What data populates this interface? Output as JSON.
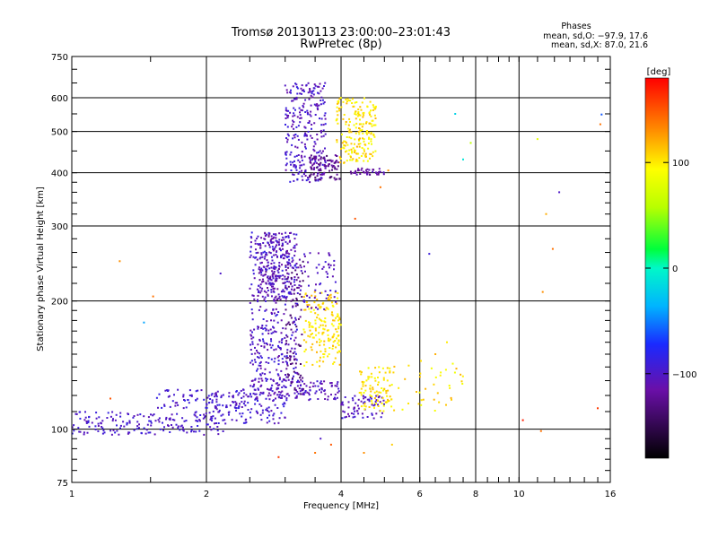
{
  "chart_data": {
    "type": "scatter",
    "title": "Tromsø 20130113 23:00:00–23:01:43",
    "subtitle": "RwPretec (8p)",
    "xlabel": "Frequency [MHz]",
    "ylabel": "Stationary phase Virtual Height [km]",
    "x_scale": "log",
    "y_scale": "log",
    "xlim": [
      1,
      16
    ],
    "ylim": [
      75,
      750
    ],
    "x_ticks": [
      1,
      2,
      4,
      6,
      8,
      10,
      16
    ],
    "x_tick_labels": [
      "1",
      "2",
      "4",
      "6",
      "8",
      "10",
      "16"
    ],
    "y_ticks": [
      75,
      100,
      200,
      300,
      400,
      500,
      600,
      750
    ],
    "y_tick_labels": [
      "75",
      "100",
      "200",
      "300",
      "400",
      "500",
      "600",
      "750"
    ],
    "grid": true,
    "stats": {
      "heading": "Phases",
      "line_o": "mean, sd,O: −97.9, 17.6",
      "line_x": "mean, sd,X: 87.0, 21.6"
    },
    "colorbar": {
      "label": "[deg]",
      "range": [
        -180,
        180
      ],
      "ticks": [
        100,
        0,
        -100
      ],
      "tick_labels": [
        "100",
        "0",
        "−100"
      ]
    },
    "clusters": [
      {
        "name": "low-E trace",
        "x_range": [
          1.0,
          2.2
        ],
        "y_range": [
          97,
          110
        ],
        "phase_range": [
          -110,
          -85
        ],
        "count": 180
      },
      {
        "name": "E rising",
        "x_range": [
          2.0,
          3.0
        ],
        "y_range": [
          103,
          122
        ],
        "phase_range": [
          -110,
          -85
        ],
        "count": 120
      },
      {
        "name": "E upper",
        "x_range": [
          1.55,
          2.5
        ],
        "y_range": [
          112,
          124
        ],
        "phase_range": [
          -110,
          -85
        ],
        "count": 80
      },
      {
        "name": "E spread",
        "x_range": [
          2.5,
          4.0
        ],
        "y_range": [
          117,
          130
        ],
        "phase_range": [
          -115,
          -90
        ],
        "count": 140
      },
      {
        "name": "F1 column",
        "x_range": [
          2.5,
          3.2
        ],
        "y_range": [
          130,
          290
        ],
        "phase_range": [
          -115,
          -85
        ],
        "count": 380
      },
      {
        "name": "F1 dense core",
        "x_range": [
          2.6,
          3.1
        ],
        "y_range": [
          200,
          290
        ],
        "phase_range": [
          -125,
          -90
        ],
        "count": 160
      },
      {
        "name": "F1 violet column",
        "x_range": [
          3.0,
          3.3
        ],
        "y_range": [
          120,
          250
        ],
        "phase_range": [
          -140,
          -120
        ],
        "count": 90
      },
      {
        "name": "F1 X-mode",
        "x_range": [
          3.3,
          4.0
        ],
        "y_range": [
          140,
          210
        ],
        "phase_range": [
          90,
          120
        ],
        "count": 170
      },
      {
        "name": "F1 mixed",
        "x_range": [
          3.2,
          3.9
        ],
        "y_range": [
          190,
          260
        ],
        "phase_range": [
          -115,
          -90
        ],
        "count": 60
      },
      {
        "name": "E high-freq O",
        "x_range": [
          4.0,
          5.0
        ],
        "y_range": [
          106,
          120
        ],
        "phase_range": [
          -115,
          -90
        ],
        "count": 70
      },
      {
        "name": "E high-freq X",
        "x_range": [
          4.4,
          5.2
        ],
        "y_range": [
          110,
          140
        ],
        "phase_range": [
          85,
          115
        ],
        "count": 90
      },
      {
        "name": "E tail",
        "x_range": [
          5.2,
          7.5
        ],
        "y_range": [
          110,
          145
        ],
        "phase_range": [
          85,
          120
        ],
        "count": 40
      },
      {
        "name": "F2 O-mode",
        "x_range": [
          3.0,
          3.7
        ],
        "y_range": [
          380,
          650
        ],
        "phase_range": [
          -115,
          -85
        ],
        "count": 260
      },
      {
        "name": "F2 base",
        "x_range": [
          3.4,
          4.0
        ],
        "y_range": [
          385,
          440
        ],
        "phase_range": [
          -140,
          -110
        ],
        "count": 90
      },
      {
        "name": "F2 X-mode",
        "x_range": [
          3.9,
          4.8
        ],
        "y_range": [
          420,
          600
        ],
        "phase_range": [
          85,
          120
        ],
        "count": 200
      },
      {
        "name": "F2 lower edge",
        "x_range": [
          4.2,
          5.0
        ],
        "y_range": [
          395,
          410
        ],
        "phase_range": [
          -130,
          -100
        ],
        "count": 40
      }
    ],
    "outliers": [
      {
        "x": 1.28,
        "y": 248,
        "phase": 130
      },
      {
        "x": 1.22,
        "y": 118,
        "phase": 150
      },
      {
        "x": 1.52,
        "y": 205,
        "phase": 140
      },
      {
        "x": 1.45,
        "y": 178,
        "phase": -40
      },
      {
        "x": 2.15,
        "y": 232,
        "phase": -100
      },
      {
        "x": 4.3,
        "y": 312,
        "phase": 150
      },
      {
        "x": 4.9,
        "y": 370,
        "phase": 140
      },
      {
        "x": 5.1,
        "y": 405,
        "phase": 130
      },
      {
        "x": 6.3,
        "y": 258,
        "phase": -90
      },
      {
        "x": 7.5,
        "y": 430,
        "phase": -10
      },
      {
        "x": 7.2,
        "y": 550,
        "phase": -20
      },
      {
        "x": 7.8,
        "y": 470,
        "phase": 60
      },
      {
        "x": 11.0,
        "y": 480,
        "phase": 80
      },
      {
        "x": 11.5,
        "y": 320,
        "phase": 120
      },
      {
        "x": 12.3,
        "y": 360,
        "phase": -100
      },
      {
        "x": 11.9,
        "y": 265,
        "phase": 140
      },
      {
        "x": 11.3,
        "y": 210,
        "phase": 130
      },
      {
        "x": 15.3,
        "y": 548,
        "phase": -60
      },
      {
        "x": 15.2,
        "y": 520,
        "phase": 140
      },
      {
        "x": 15.0,
        "y": 112,
        "phase": 160
      },
      {
        "x": 10.2,
        "y": 105,
        "phase": 170
      },
      {
        "x": 11.2,
        "y": 99,
        "phase": 140
      },
      {
        "x": 6.9,
        "y": 160,
        "phase": 100
      },
      {
        "x": 6.5,
        "y": 150,
        "phase": 120
      },
      {
        "x": 3.5,
        "y": 88,
        "phase": 140
      },
      {
        "x": 4.5,
        "y": 88,
        "phase": 130
      },
      {
        "x": 2.9,
        "y": 86,
        "phase": 160
      },
      {
        "x": 3.6,
        "y": 95,
        "phase": -100
      },
      {
        "x": 5.2,
        "y": 92,
        "phase": 110
      },
      {
        "x": 3.8,
        "y": 92,
        "phase": 150
      }
    ]
  }
}
